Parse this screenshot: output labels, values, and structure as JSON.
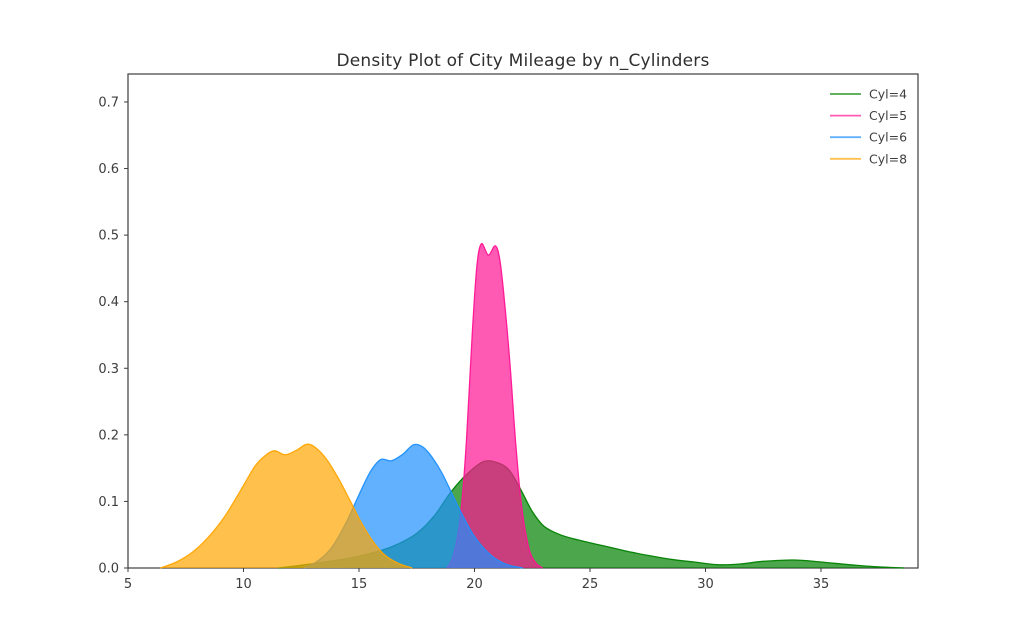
{
  "window": {
    "background_color": "#ffffff"
  },
  "chart_data": {
    "type": "area",
    "subtype": "kde-density",
    "title": "Density Plot of City Mileage by n_Cylinders",
    "xlabel": "",
    "ylabel": "",
    "xlim": [
      5,
      39.2
    ],
    "ylim": [
      0,
      0.742
    ],
    "xticks": [
      5,
      10,
      15,
      20,
      25,
      30,
      35
    ],
    "yticks": [
      0.0,
      0.1,
      0.2,
      0.3,
      0.4,
      0.5,
      0.6,
      0.7
    ],
    "grid": false,
    "frame_color": "#3e3e3e",
    "tick_text_color": "#3d3d3d",
    "fill_opacity": 0.7,
    "legend": {
      "position": "upper right",
      "entries": [
        "Cyl=4",
        "Cyl=5",
        "Cyl=6",
        "Cyl=8"
      ]
    },
    "series": [
      {
        "name": "Cyl=4",
        "color": "#008000",
        "points": [
          [
            11.5,
            0
          ],
          [
            12.5,
            0.004
          ],
          [
            13.5,
            0.009
          ],
          [
            14.5,
            0.014
          ],
          [
            15.5,
            0.022
          ],
          [
            16.5,
            0.033
          ],
          [
            17.5,
            0.052
          ],
          [
            18.25,
            0.078
          ],
          [
            19,
            0.115
          ],
          [
            19.7,
            0.142
          ],
          [
            20.4,
            0.16
          ],
          [
            21,
            0.158
          ],
          [
            21.5,
            0.147
          ],
          [
            22,
            0.118
          ],
          [
            22.5,
            0.085
          ],
          [
            23,
            0.063
          ],
          [
            23.7,
            0.05
          ],
          [
            24.5,
            0.042
          ],
          [
            25.5,
            0.034
          ],
          [
            26.5,
            0.026
          ],
          [
            27.5,
            0.019
          ],
          [
            28.5,
            0.013
          ],
          [
            29.5,
            0.009
          ],
          [
            30.5,
            0.005
          ],
          [
            31.5,
            0.006
          ],
          [
            32.5,
            0.01
          ],
          [
            33.8,
            0.012
          ],
          [
            35,
            0.009
          ],
          [
            36.2,
            0.005
          ],
          [
            37.3,
            0.002
          ],
          [
            38.6,
            0
          ]
        ]
      },
      {
        "name": "Cyl=5",
        "color": "#ff1493",
        "points": [
          [
            18.8,
            0
          ],
          [
            19.1,
            0.02
          ],
          [
            19.4,
            0.08
          ],
          [
            19.65,
            0.19
          ],
          [
            19.9,
            0.35
          ],
          [
            20.1,
            0.452
          ],
          [
            20.3,
            0.487
          ],
          [
            20.6,
            0.47
          ],
          [
            20.9,
            0.484
          ],
          [
            21.1,
            0.462
          ],
          [
            21.3,
            0.4
          ],
          [
            21.55,
            0.3
          ],
          [
            21.8,
            0.18
          ],
          [
            22.05,
            0.09
          ],
          [
            22.35,
            0.03
          ],
          [
            22.65,
            0.008
          ],
          [
            22.95,
            0
          ]
        ]
      },
      {
        "name": "Cyl=6",
        "color": "#1e90ff",
        "points": [
          [
            12.6,
            0
          ],
          [
            13.2,
            0.01
          ],
          [
            13.8,
            0.03
          ],
          [
            14.4,
            0.065
          ],
          [
            15,
            0.11
          ],
          [
            15.5,
            0.145
          ],
          [
            15.95,
            0.163
          ],
          [
            16.4,
            0.161
          ],
          [
            16.9,
            0.171
          ],
          [
            17.35,
            0.185
          ],
          [
            17.75,
            0.182
          ],
          [
            18.15,
            0.167
          ],
          [
            18.6,
            0.142
          ],
          [
            19.05,
            0.11
          ],
          [
            19.5,
            0.078
          ],
          [
            19.95,
            0.05
          ],
          [
            20.45,
            0.028
          ],
          [
            20.95,
            0.013
          ],
          [
            21.5,
            0.004
          ],
          [
            22.1,
            0
          ]
        ]
      },
      {
        "name": "Cyl=8",
        "color": "#ffa500",
        "points": [
          [
            6.4,
            0
          ],
          [
            7.1,
            0.009
          ],
          [
            7.8,
            0.024
          ],
          [
            8.5,
            0.047
          ],
          [
            9.2,
            0.078
          ],
          [
            9.9,
            0.118
          ],
          [
            10.5,
            0.153
          ],
          [
            10.95,
            0.169
          ],
          [
            11.35,
            0.176
          ],
          [
            11.8,
            0.17
          ],
          [
            12.3,
            0.177
          ],
          [
            12.75,
            0.186
          ],
          [
            13.15,
            0.18
          ],
          [
            13.6,
            0.163
          ],
          [
            14.1,
            0.135
          ],
          [
            14.6,
            0.102
          ],
          [
            15.1,
            0.068
          ],
          [
            15.6,
            0.04
          ],
          [
            16.1,
            0.02
          ],
          [
            16.7,
            0.007
          ],
          [
            17.3,
            0
          ]
        ]
      }
    ]
  }
}
